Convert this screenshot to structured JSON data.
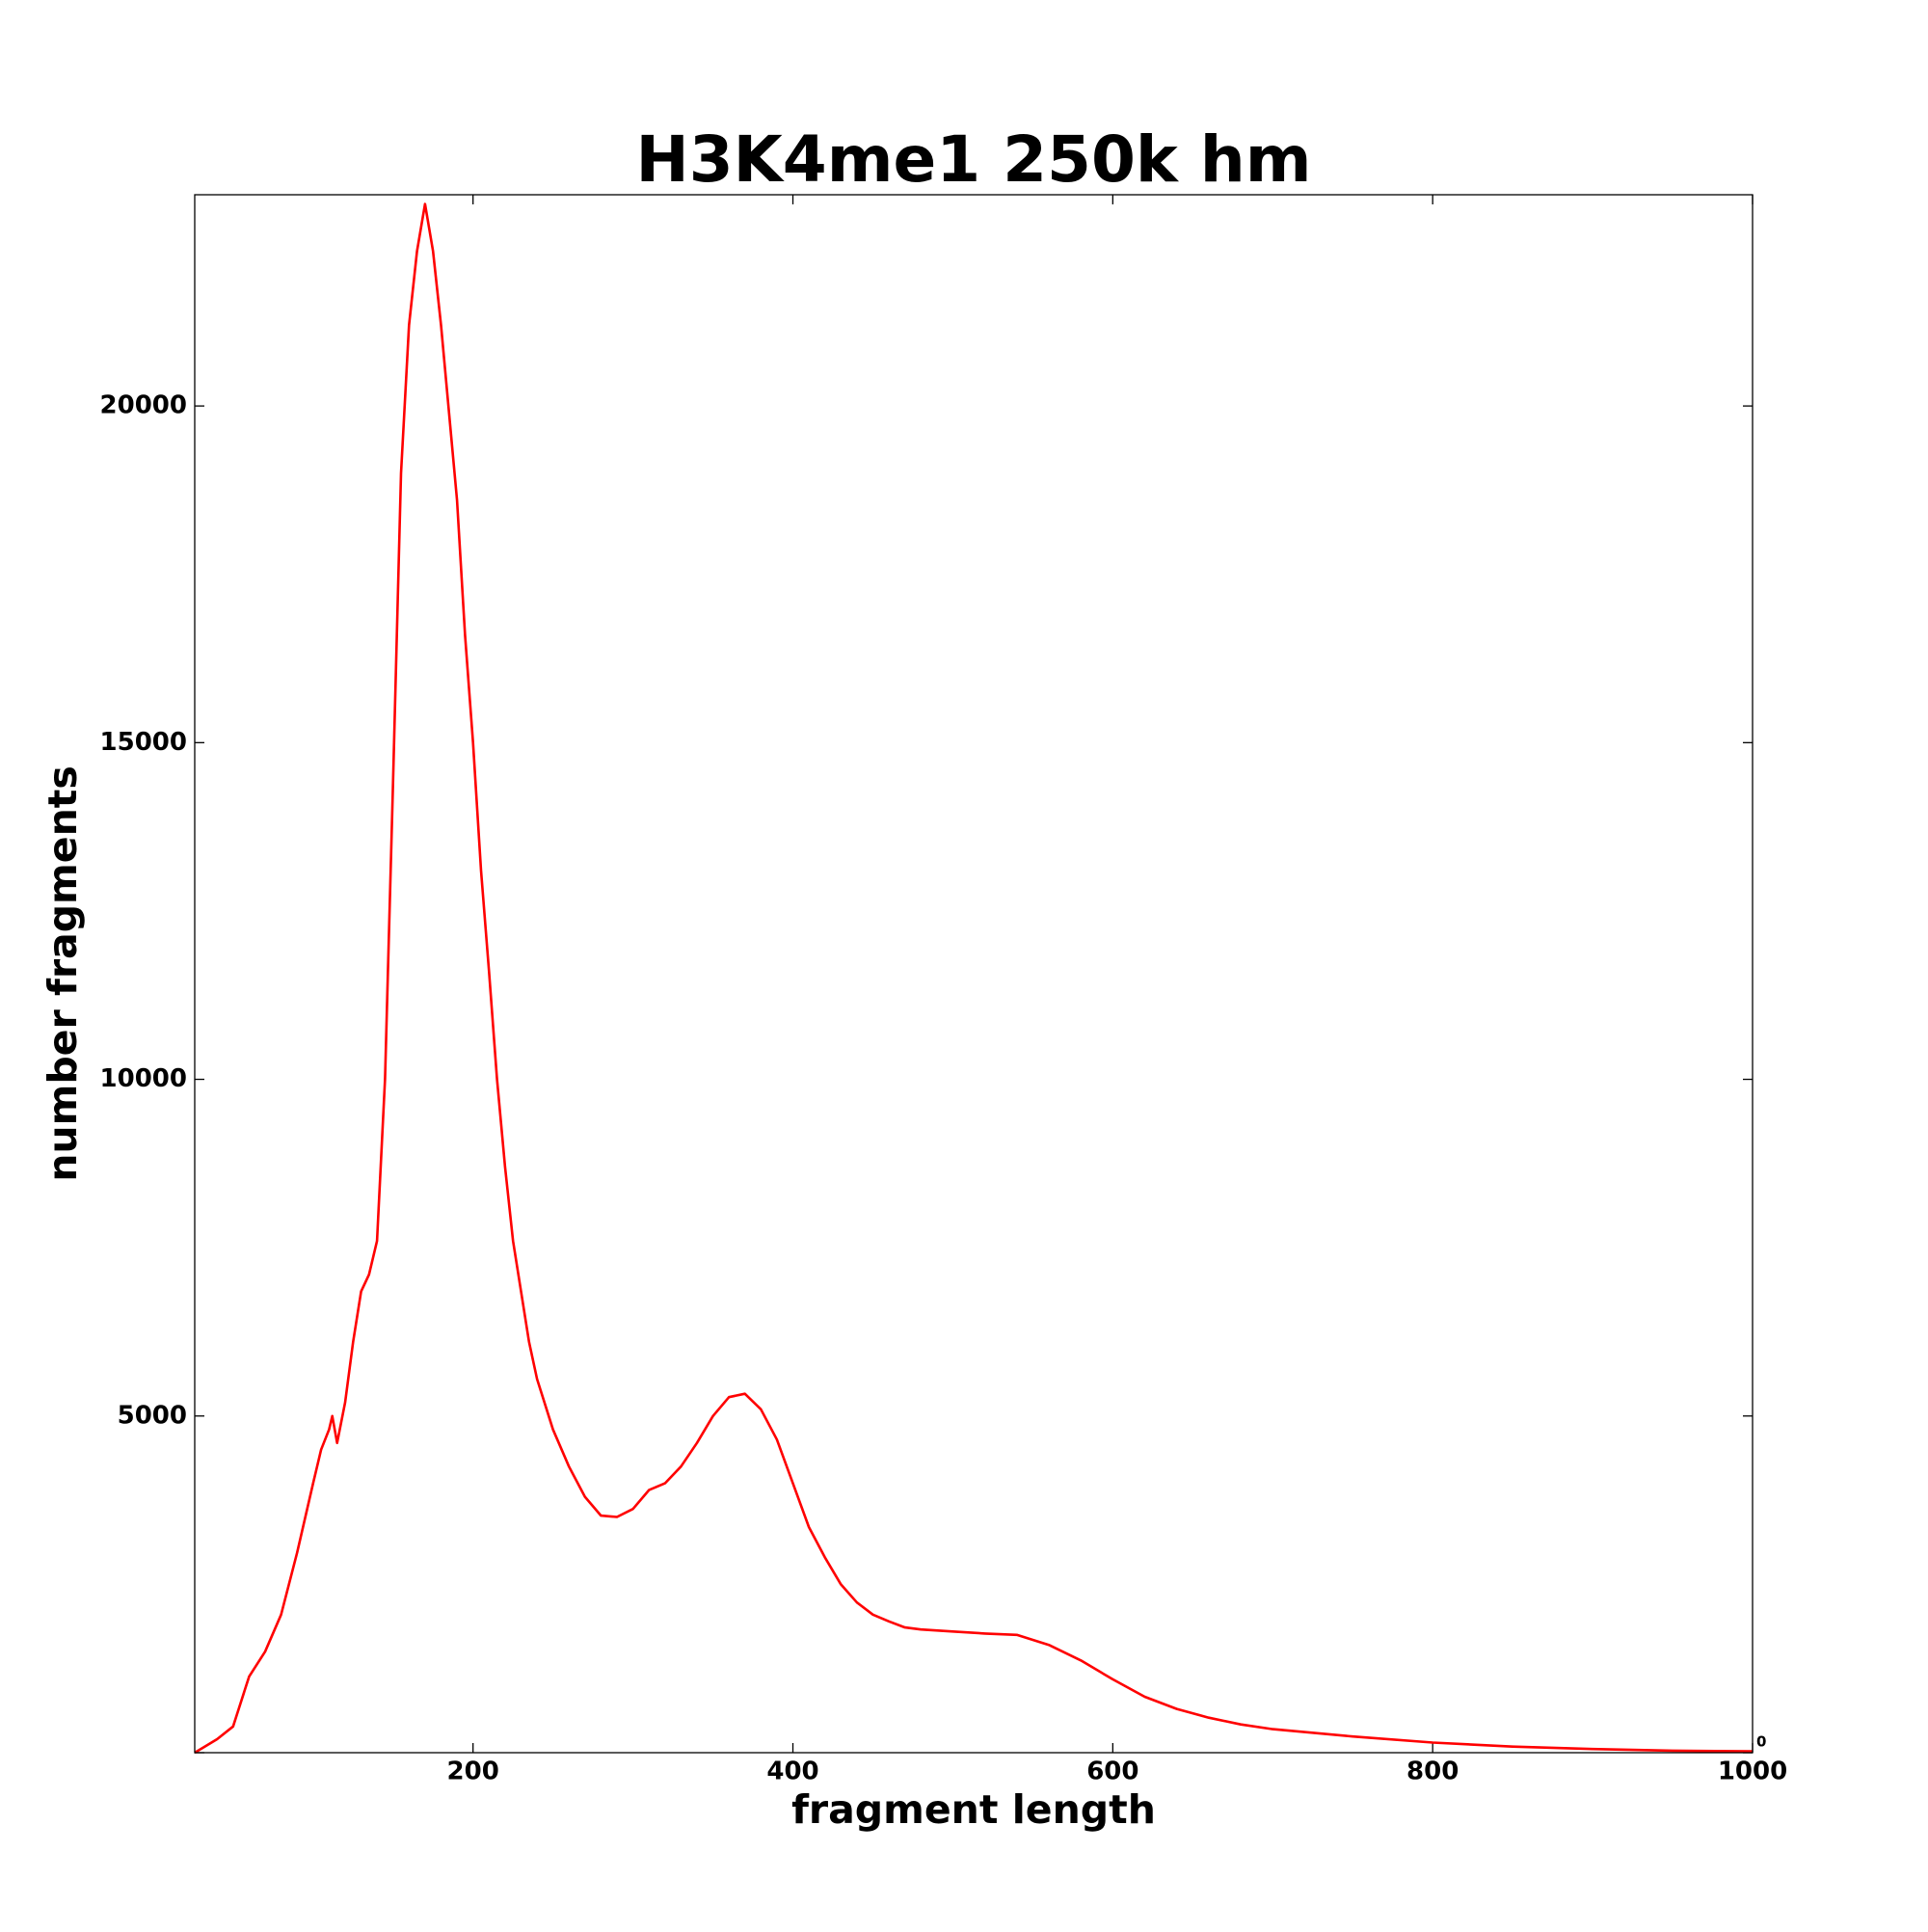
{
  "chart_data": {
    "type": "line",
    "title": "H3K4me1 250k hm",
    "x_label": "fragment length",
    "y_label": "number fragments",
    "x": [
      26,
      40,
      50,
      60,
      70,
      80,
      90,
      100,
      105,
      110,
      112,
      115,
      120,
      125,
      130,
      135,
      140,
      145,
      150,
      155,
      160,
      165,
      170,
      175,
      180,
      185,
      190,
      195,
      200,
      205,
      210,
      215,
      220,
      225,
      230,
      235,
      240,
      250,
      260,
      270,
      280,
      290,
      300,
      310,
      320,
      330,
      340,
      350,
      360,
      370,
      380,
      390,
      400,
      410,
      420,
      430,
      440,
      450,
      460,
      470,
      480,
      500,
      520,
      540,
      560,
      580,
      600,
      620,
      640,
      660,
      680,
      700,
      750,
      800,
      850,
      900,
      950,
      1000
    ],
    "series": [
      {
        "name": "fragments",
        "color": "#ff0000",
        "values": [
          0,
          200,
          390,
          1130,
          1500,
          2050,
          2970,
          4000,
          4500,
          4800,
          5000,
          4600,
          5200,
          6100,
          6850,
          7100,
          7600,
          10000,
          14400,
          19000,
          21200,
          22300,
          23000,
          22300,
          21200,
          19900,
          18600,
          16600,
          15000,
          13100,
          11600,
          10000,
          8700,
          7600,
          6850,
          6100,
          5550,
          4800,
          4250,
          3800,
          3520,
          3500,
          3620,
          3900,
          4000,
          4250,
          4600,
          5000,
          5280,
          5330,
          5100,
          4650,
          4000,
          3350,
          2900,
          2500,
          2230,
          2050,
          1950,
          1860,
          1830,
          1800,
          1770,
          1750,
          1600,
          1370,
          1090,
          830,
          650,
          520,
          420,
          350,
          240,
          150,
          90,
          55,
          30,
          20
        ]
      }
    ],
    "xlim": [
      26,
      1000
    ],
    "ylim": [
      0,
      23137
    ],
    "xticks": [
      200,
      400,
      600,
      800,
      1000
    ],
    "yticks": [
      0,
      5000,
      10000,
      15000,
      20000
    ]
  }
}
